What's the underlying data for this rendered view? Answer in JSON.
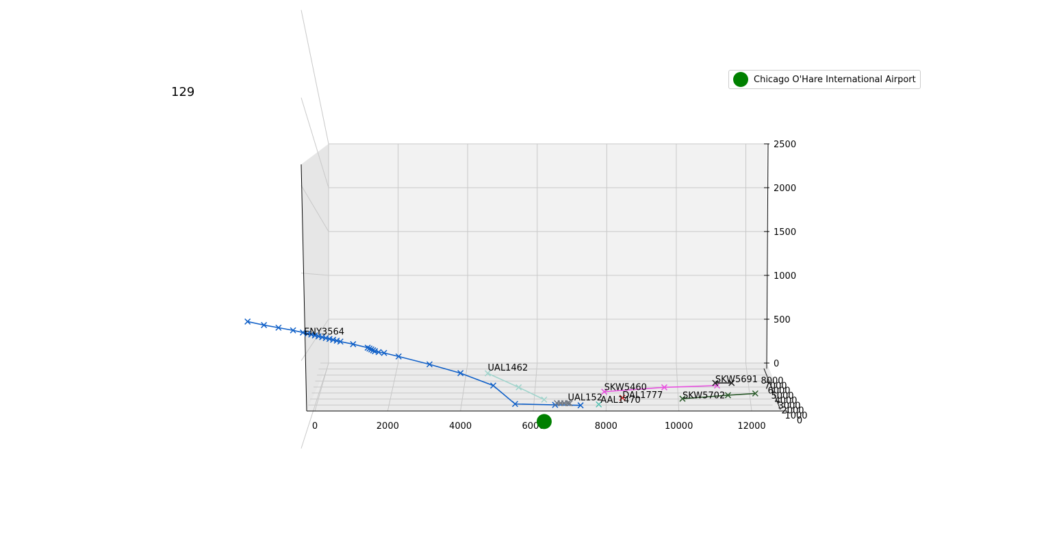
{
  "title": "129",
  "legend": {
    "label": "Chicago O'Hare International Airport",
    "color": "#008000"
  },
  "chart_data": {
    "type": "line3d",
    "axes": {
      "x": {
        "range": [
          0,
          12600
        ],
        "ticks": [
          0,
          2000,
          4000,
          6000,
          8000,
          10000,
          12000
        ]
      },
      "y": {
        "range": [
          0,
          8000
        ],
        "ticks": [
          0,
          1000,
          2000,
          3000,
          4000,
          5000,
          6000,
          7000,
          8000
        ],
        "tick_labels": [
          "0",
          "1000",
          "2000",
          "3000",
          "4000",
          "5000",
          "6000",
          "7000",
          "8000"
        ]
      },
      "z": {
        "range": [
          0,
          2500
        ],
        "ticks": [
          0,
          500,
          1000,
          1500,
          2000,
          2500
        ]
      },
      "grid": true
    },
    "airport": {
      "name": "Chicago O'Hare International Airport",
      "x": 6300,
      "y": 0,
      "z": -120,
      "color": "#008000"
    },
    "series": [
      {
        "name": "ENY3564",
        "color": "#1060c8",
        "label_x": -300,
        "label_z": 870,
        "points": [
          [
            -1850,
            1020
          ],
          [
            -1400,
            980
          ],
          [
            -1000,
            950
          ],
          [
            -600,
            920
          ],
          [
            -330,
            895
          ],
          [
            -200,
            882
          ],
          [
            -100,
            872
          ],
          [
            0,
            862
          ],
          [
            100,
            852
          ],
          [
            200,
            842
          ],
          [
            300,
            832
          ],
          [
            400,
            822
          ],
          [
            500,
            812
          ],
          [
            600,
            802
          ],
          [
            700,
            792
          ],
          [
            1050,
            762
          ],
          [
            1450,
            722
          ],
          [
            1500,
            712
          ],
          [
            1550,
            702
          ],
          [
            1600,
            692
          ],
          [
            1650,
            682
          ],
          [
            1750,
            672
          ],
          [
            1900,
            662
          ],
          [
            2300,
            622
          ],
          [
            3150,
            532
          ],
          [
            4000,
            432
          ],
          [
            4900,
            290
          ],
          [
            5500,
            80
          ],
          [
            6600,
            70
          ],
          [
            7300,
            65
          ]
        ]
      },
      {
        "name": "UAL1462",
        "color": "#a0d4cc",
        "label_x": 4750,
        "label_z": 460,
        "points": [
          [
            4750,
            430
          ],
          [
            5600,
            270
          ],
          [
            6300,
            130
          ]
        ]
      },
      {
        "name": "UAL152",
        "color": "#6d7580",
        "label_x": 6950,
        "label_z": 120,
        "points": [
          [
            6650,
            90
          ],
          [
            6750,
            90
          ],
          [
            6850,
            90
          ],
          [
            6950,
            90
          ],
          [
            7000,
            88
          ]
        ]
      },
      {
        "name": "AAL1470",
        "color": "#50c0b0",
        "label_x": 7850,
        "label_z": 95,
        "points": [
          [
            7800,
            75
          ]
        ]
      },
      {
        "name": "DAL1777",
        "color": "#e03030",
        "label_x": 8450,
        "label_z": 150,
        "points": [
          [
            8450,
            150
          ]
        ]
      },
      {
        "name": "SKW5460",
        "color": "#e850e0",
        "label_x": 7950,
        "label_z": 240,
        "points": [
          [
            7950,
            220
          ],
          [
            9600,
            270
          ],
          [
            11050,
            290
          ]
        ]
      },
      {
        "name": "SKW5691",
        "color": "#222222",
        "label_x": 11000,
        "label_z": 330,
        "points": [
          [
            11000,
            320
          ],
          [
            11450,
            320
          ]
        ]
      },
      {
        "name": "SKW5702",
        "color": "#2a5a2a",
        "label_x": 10100,
        "label_z": 145,
        "points": [
          [
            10100,
            140
          ],
          [
            11350,
            180
          ],
          [
            12100,
            200
          ]
        ]
      }
    ]
  }
}
